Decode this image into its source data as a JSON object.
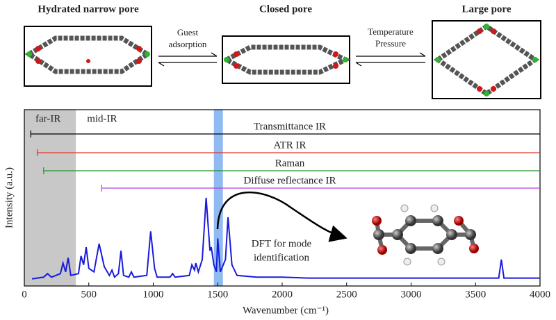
{
  "diagram": {
    "panels": [
      {
        "title": "Hydrated narrow pore"
      },
      {
        "title": "Closed pore"
      },
      {
        "title": "Large pore"
      }
    ],
    "transitions": [
      {
        "label": [
          "Guest",
          "adsorption"
        ]
      },
      {
        "label": [
          "Temperature",
          "Pressure"
        ]
      }
    ]
  },
  "chart_data": {
    "type": "line",
    "xlabel": "Wavenumber (cm⁻¹)",
    "ylabel": "Intensity (a.u.)",
    "xlim": [
      0,
      4000
    ],
    "xticks": [
      0,
      500,
      1000,
      1500,
      2000,
      2500,
      3000,
      3500,
      4000
    ],
    "ylim": [
      0,
      1
    ],
    "regions": [
      {
        "label": "far-IR",
        "from": 0,
        "to": 400,
        "color": "#c8c8c8"
      },
      {
        "label": "mid-IR",
        "from": 400,
        "to": 4000,
        "color": "#ffffff"
      }
    ],
    "highlight": {
      "from": 1470,
      "to": 1540,
      "color": "#8fbaf2"
    },
    "ranges": [
      {
        "name": "Transmittance IR",
        "from": 50,
        "to": 4000,
        "color": "#000000"
      },
      {
        "name": "ATR IR",
        "from": 100,
        "to": 4000,
        "color": "#e8312a"
      },
      {
        "name": "Raman",
        "from": 150,
        "to": 4000,
        "color": "#23942a"
      },
      {
        "name": "Diffuse reflectance IR",
        "from": 600,
        "to": 4000,
        "color": "#b43ee0"
      }
    ],
    "annotation": [
      "DFT for mode",
      "identification"
    ],
    "series": [
      {
        "color": "#1a1adc",
        "x": [
          60,
          150,
          180,
          210,
          280,
          300,
          320,
          340,
          360,
          420,
          440,
          460,
          480,
          500,
          540,
          580,
          620,
          660,
          680,
          700,
          730,
          750,
          770,
          810,
          830,
          850,
          950,
          980,
          1010,
          1030,
          1130,
          1150,
          1170,
          1280,
          1300,
          1320,
          1330,
          1350,
          1380,
          1410,
          1440,
          1450,
          1470,
          1490,
          1500,
          1520,
          1560,
          1580,
          1610,
          1650,
          1800,
          2000,
          2200,
          2600,
          3000,
          3400,
          3680,
          3700,
          3720,
          4000
        ],
        "values": [
          0.04,
          0.05,
          0.07,
          0.05,
          0.07,
          0.13,
          0.08,
          0.16,
          0.06,
          0.07,
          0.17,
          0.12,
          0.22,
          0.1,
          0.08,
          0.24,
          0.11,
          0.06,
          0.09,
          0.05,
          0.07,
          0.2,
          0.06,
          0.05,
          0.08,
          0.05,
          0.06,
          0.31,
          0.1,
          0.05,
          0.05,
          0.07,
          0.05,
          0.06,
          0.12,
          0.09,
          0.13,
          0.08,
          0.15,
          0.5,
          0.2,
          0.22,
          0.12,
          0.08,
          0.27,
          0.08,
          0.15,
          0.39,
          0.12,
          0.06,
          0.05,
          0.05,
          0.045,
          0.045,
          0.045,
          0.045,
          0.045,
          0.15,
          0.045,
          0.045
        ]
      }
    ]
  }
}
